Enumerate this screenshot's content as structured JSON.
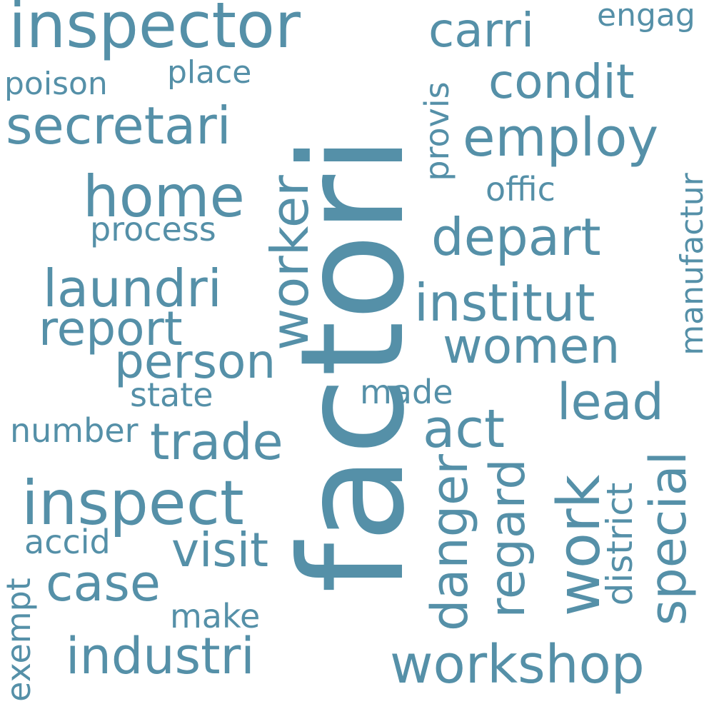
{
  "colors": {
    "background": "#ffffff",
    "word": "#5590a8"
  },
  "words": {
    "factori": "factori",
    "inspector": "inspector",
    "secretari": "secretari",
    "carri": "carri",
    "engag": "engag",
    "condit": "condit",
    "employ": "employ",
    "poison": "poison",
    "place": "place",
    "provis": "provis",
    "home": "home",
    "offic": "offic",
    "process": "process",
    "worker": "worker",
    "depart": "depart",
    "manufactur": "manufactur",
    "laundri": "laundri",
    "institut": "institut",
    "report": "report",
    "women": "women",
    "person": "person",
    "made": "made",
    "state": "state",
    "lead": "lead",
    "number": "number",
    "trade": "trade",
    "act": "act",
    "inspect": "inspect",
    "danger": "danger",
    "regard": "regard",
    "work": "work",
    "district": "district",
    "special": "special",
    "accid": "accid",
    "visit": "visit",
    "case": "case",
    "exempt": "exempt",
    "make": "make",
    "industri": "industri",
    "workshop": "workshop"
  }
}
